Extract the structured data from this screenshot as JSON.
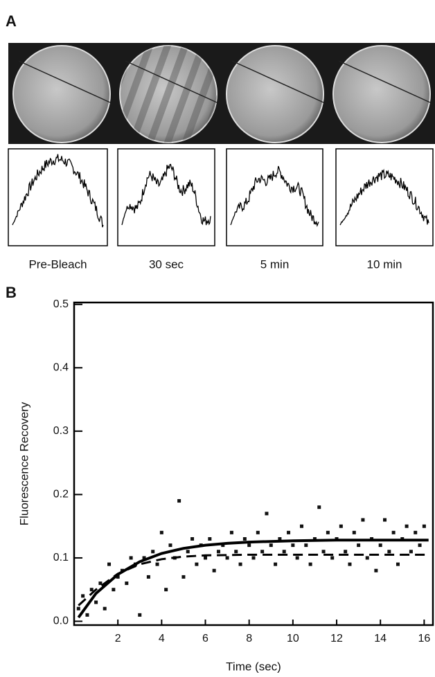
{
  "panel_a": {
    "label": "A",
    "frames": [
      "Pre-Bleach",
      "30 sec",
      "5 min",
      "10 min"
    ]
  },
  "chart_data": {
    "type": "scatter",
    "panel_label": "B",
    "x_label": "Time (sec)",
    "y_label": "Fluorescence Recovery",
    "xlim": [
      0,
      16.4
    ],
    "ylim": [
      -0.006,
      0.503
    ],
    "xticks": [
      2,
      4,
      6,
      8,
      10,
      12,
      14,
      16
    ],
    "yticks": [
      {
        "value": 0,
        "label": "0.0"
      },
      0.1,
      0.2,
      0.3,
      0.4,
      0.5
    ],
    "series": [
      {
        "type": "scatter",
        "color": "#111111",
        "x": [
          0.2,
          0.4,
          0.6,
          0.8,
          1.0,
          1.2,
          1.4,
          1.6,
          1.8,
          2.0,
          2.2,
          2.4,
          2.6,
          2.8,
          3.0,
          3.2,
          3.4,
          3.6,
          3.8,
          4.0,
          4.2,
          4.4,
          4.6,
          4.8,
          5.0,
          5.2,
          5.4,
          5.6,
          5.8,
          6.0,
          6.2,
          6.4,
          6.6,
          6.8,
          7.0,
          7.2,
          7.4,
          7.6,
          7.8,
          8.0,
          8.2,
          8.4,
          8.6,
          8.8,
          9.0,
          9.2,
          9.4,
          9.6,
          9.8,
          10.0,
          10.2,
          10.4,
          10.6,
          10.8,
          11.0,
          11.2,
          11.4,
          11.6,
          11.8,
          12.0,
          12.2,
          12.4,
          12.6,
          12.8,
          13.0,
          13.2,
          13.4,
          13.6,
          13.8,
          14.0,
          14.2,
          14.4,
          14.6,
          14.8,
          15.0,
          15.2,
          15.4,
          15.6,
          15.8,
          16.0
        ],
        "values": [
          0.02,
          0.04,
          0.01,
          0.05,
          0.03,
          0.06,
          0.02,
          0.09,
          0.05,
          0.07,
          0.08,
          0.06,
          0.1,
          0.09,
          0.01,
          0.1,
          0.07,
          0.11,
          0.09,
          0.14,
          0.05,
          0.12,
          0.1,
          0.19,
          0.07,
          0.11,
          0.13,
          0.09,
          0.12,
          0.1,
          0.13,
          0.08,
          0.11,
          0.12,
          0.1,
          0.14,
          0.11,
          0.09,
          0.13,
          0.12,
          0.1,
          0.14,
          0.11,
          0.17,
          0.12,
          0.09,
          0.13,
          0.11,
          0.14,
          0.12,
          0.1,
          0.15,
          0.12,
          0.09,
          0.13,
          0.18,
          0.11,
          0.14,
          0.1,
          0.13,
          0.15,
          0.11,
          0.09,
          0.14,
          0.12,
          0.16,
          0.1,
          0.13,
          0.08,
          0.12,
          0.16,
          0.11,
          0.14,
          0.09,
          0.13,
          0.15,
          0.11,
          0.14,
          0.12,
          0.15
        ]
      },
      {
        "type": "line",
        "style": "solid",
        "color": "#000000",
        "x": [
          0.2,
          1,
          2,
          3,
          4,
          5,
          6,
          7,
          8,
          10,
          12,
          14,
          16.2
        ],
        "values": [
          0.006,
          0.044,
          0.074,
          0.094,
          0.107,
          0.115,
          0.12,
          0.123,
          0.125,
          0.127,
          0.128,
          0.128,
          0.128
        ]
      },
      {
        "type": "line",
        "style": "dashed",
        "color": "#000000",
        "x": [
          0.2,
          1,
          2,
          3,
          4,
          5,
          6,
          8,
          10,
          12,
          14,
          16.2
        ],
        "values": [
          0.025,
          0.05,
          0.075,
          0.09,
          0.098,
          0.102,
          0.104,
          0.105,
          0.105,
          0.105,
          0.105,
          0.105
        ]
      }
    ]
  }
}
